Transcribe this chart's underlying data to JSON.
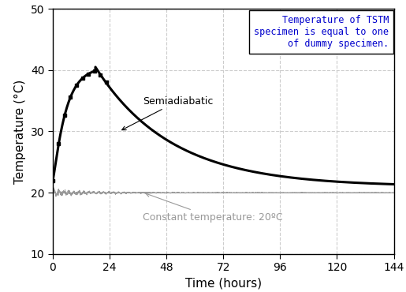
{
  "title": "",
  "xlabel": "Time (hours)",
  "ylabel": "Temperature (°C)",
  "xlim": [
    0,
    144
  ],
  "ylim": [
    10,
    50
  ],
  "xticks": [
    0,
    24,
    48,
    72,
    96,
    120,
    144
  ],
  "yticks": [
    10,
    20,
    30,
    40,
    50
  ],
  "semi_color": "#000000",
  "const_color": "#999999",
  "annotation_box_color": "#0000cc",
  "annotation_box_text": "Temperature of TSTM\nspecimen is equal to one\nof dummy specimen.",
  "label_semiadiabatic": "Semiadiabatic",
  "label_constant": "Constant temperature: 20ºC",
  "semi_peak_time": 18,
  "semi_peak_temp": 40.5,
  "semi_start_temp": 22.0,
  "semi_end_temp": 21.0,
  "const_temp": 20.0,
  "background_color": "#ffffff"
}
